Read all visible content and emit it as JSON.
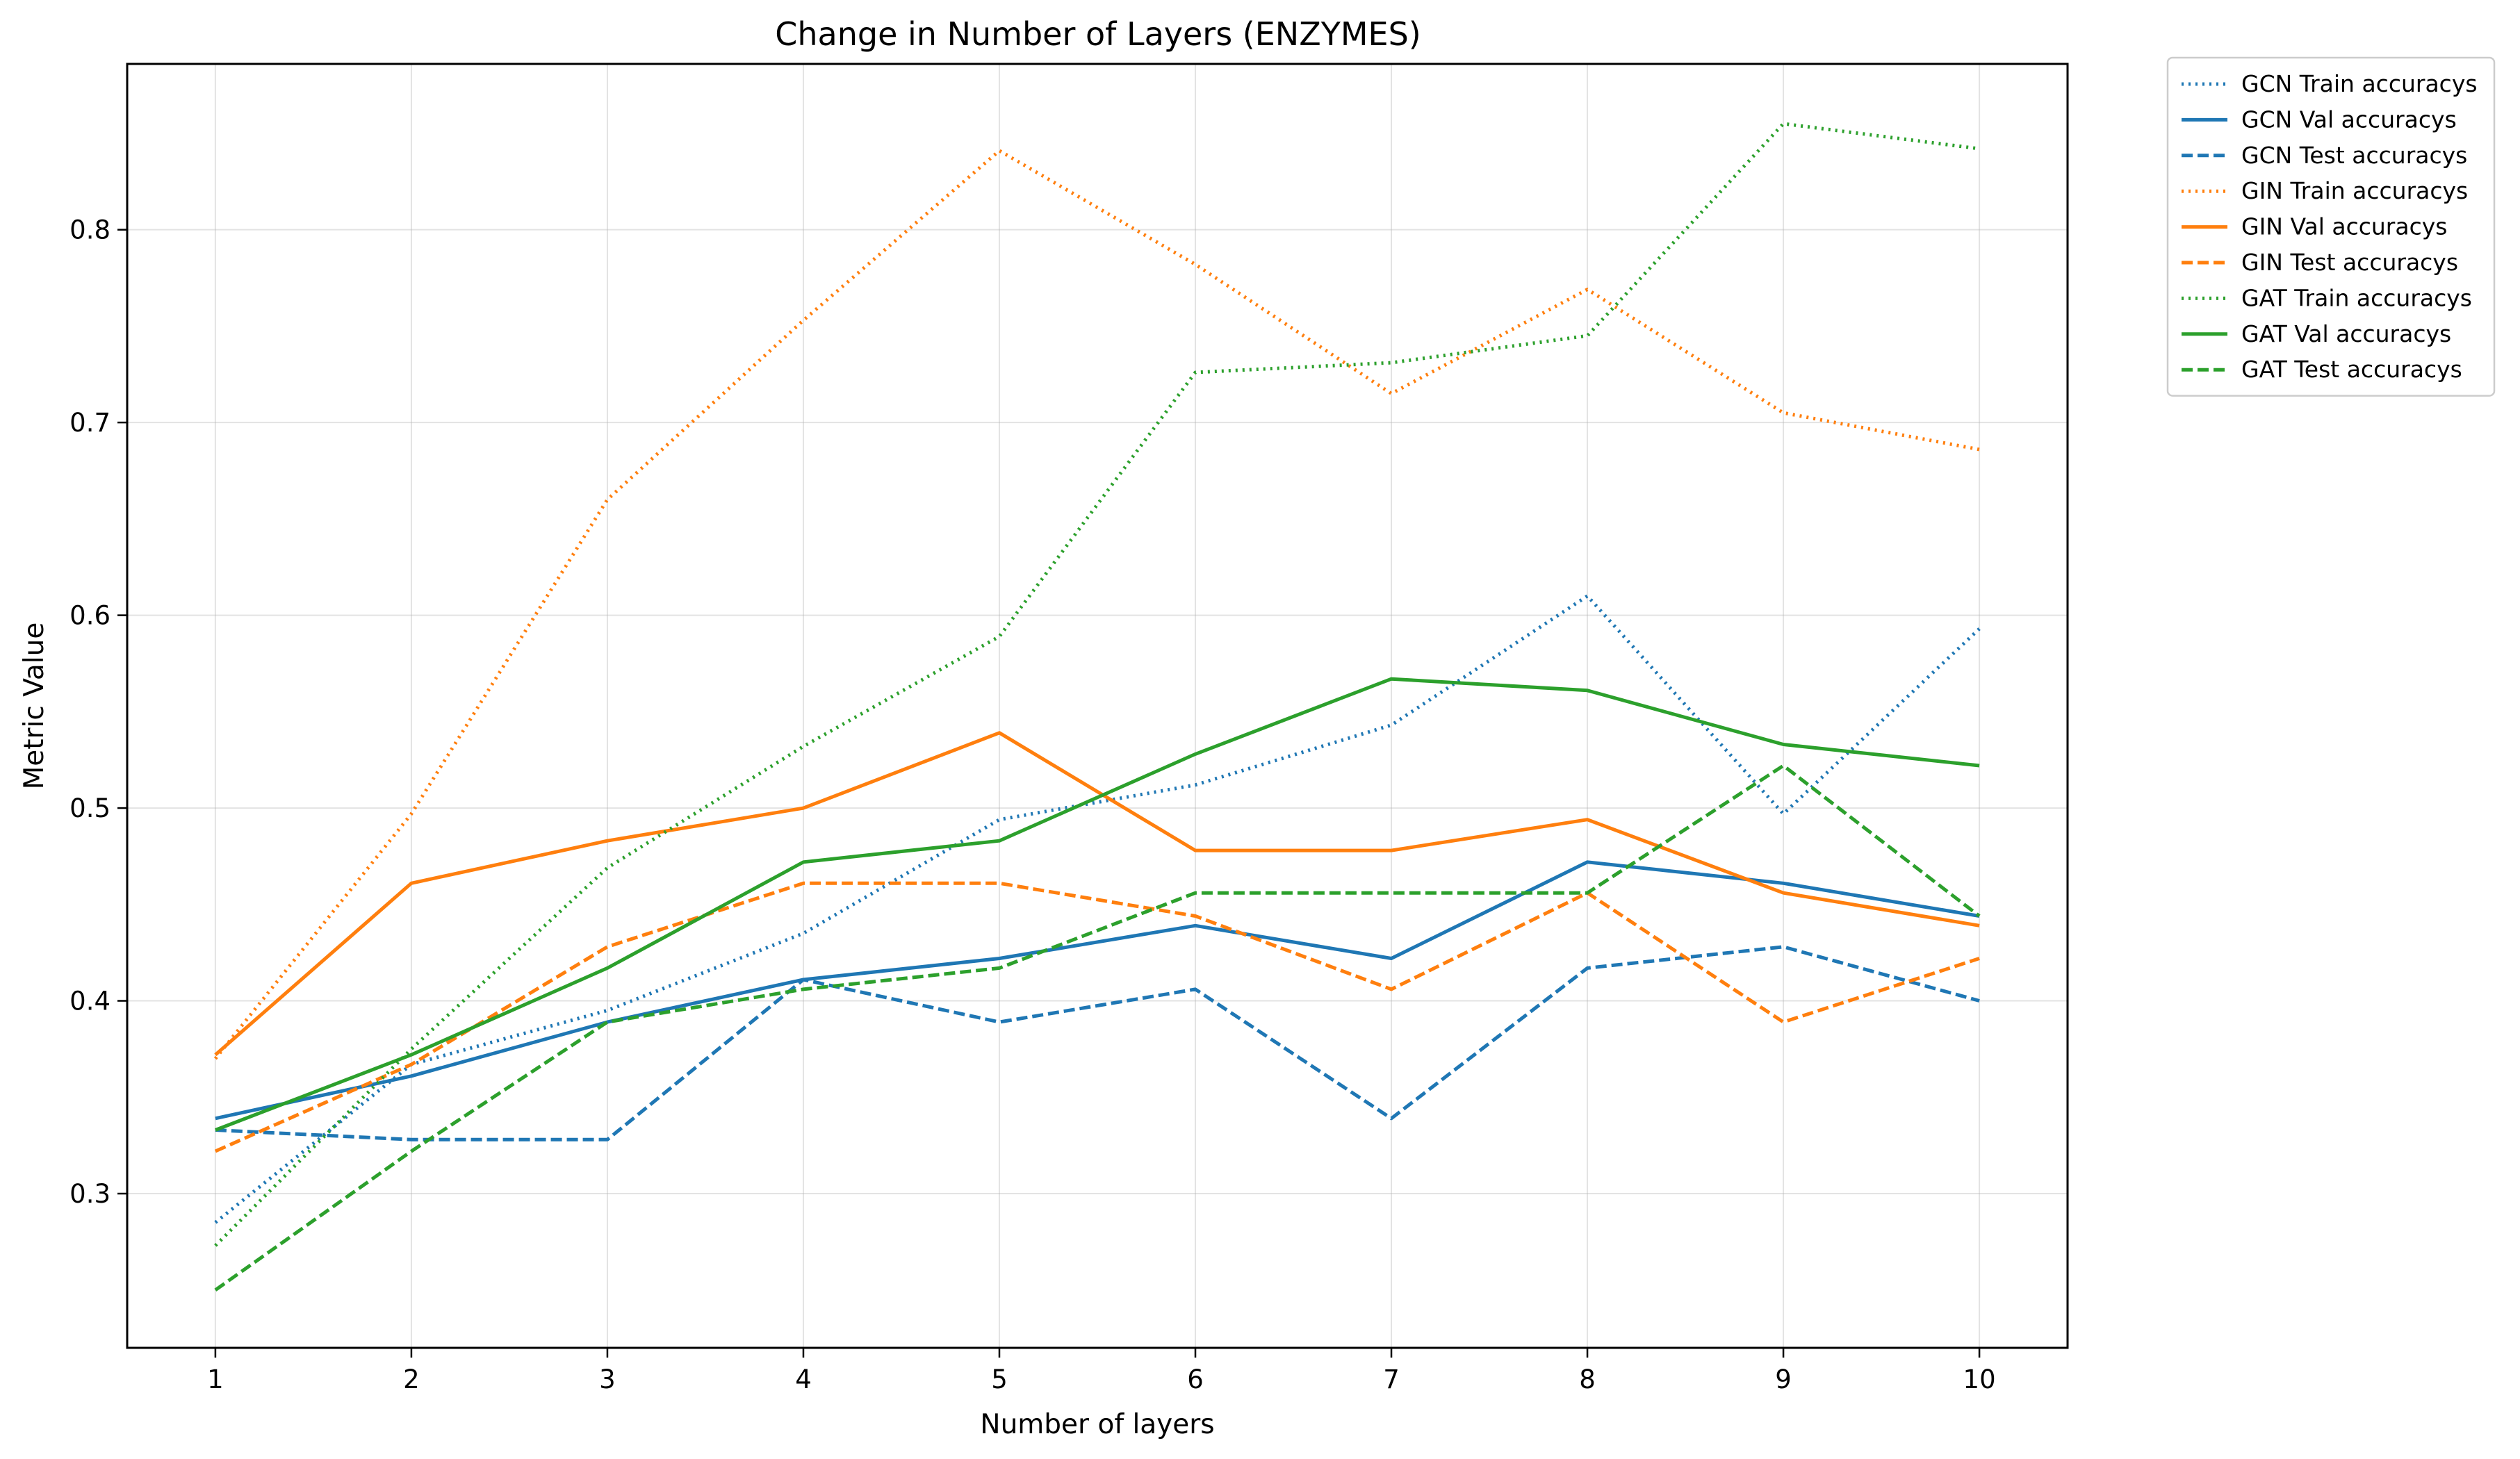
{
  "chart_data": {
    "type": "line",
    "title": "Change in Number of Layers (ENZYMES)",
    "xlabel": "Number of layers",
    "ylabel": "Metric Value",
    "x": [
      1,
      2,
      3,
      4,
      5,
      6,
      7,
      8,
      9,
      10
    ],
    "xlim": [
      0.55,
      10.45
    ],
    "ylim": [
      0.22,
      0.886
    ],
    "yticks": [
      0.3,
      0.4,
      0.5,
      0.6,
      0.7,
      0.8
    ],
    "grid": true,
    "legend_position": "outside-top-right",
    "series": [
      {
        "name": "GCN Train accuracys",
        "color": "#1f77b4",
        "style": "dotted",
        "values": [
          0.285,
          0.367,
          0.395,
          0.435,
          0.494,
          0.512,
          0.543,
          0.61,
          0.497,
          0.593
        ]
      },
      {
        "name": "GCN Val accuracys",
        "color": "#1f77b4",
        "style": "solid",
        "values": [
          0.339,
          0.361,
          0.389,
          0.411,
          0.422,
          0.439,
          0.422,
          0.472,
          0.461,
          0.444
        ]
      },
      {
        "name": "GCN Test accuracys",
        "color": "#1f77b4",
        "style": "dashed",
        "values": [
          0.333,
          0.328,
          0.328,
          0.411,
          0.389,
          0.406,
          0.339,
          0.417,
          0.428,
          0.4
        ]
      },
      {
        "name": "GIN Train accuracys",
        "color": "#ff7f0e",
        "style": "dotted",
        "values": [
          0.37,
          0.497,
          0.66,
          0.753,
          0.841,
          0.782,
          0.715,
          0.769,
          0.705,
          0.686
        ]
      },
      {
        "name": "GIN Val accuracys",
        "color": "#ff7f0e",
        "style": "solid",
        "values": [
          0.372,
          0.461,
          0.483,
          0.5,
          0.539,
          0.478,
          0.478,
          0.494,
          0.456,
          0.439
        ]
      },
      {
        "name": "GIN Test accuracys",
        "color": "#ff7f0e",
        "style": "dashed",
        "values": [
          0.322,
          0.367,
          0.428,
          0.461,
          0.461,
          0.444,
          0.406,
          0.456,
          0.389,
          0.422
        ]
      },
      {
        "name": "GAT Train accuracys",
        "color": "#2ca02c",
        "style": "dotted",
        "values": [
          0.273,
          0.375,
          0.469,
          0.532,
          0.589,
          0.726,
          0.731,
          0.745,
          0.855,
          0.842
        ]
      },
      {
        "name": "GAT Val accuracys",
        "color": "#2ca02c",
        "style": "solid",
        "values": [
          0.333,
          0.372,
          0.417,
          0.472,
          0.483,
          0.528,
          0.567,
          0.561,
          0.533,
          0.522
        ]
      },
      {
        "name": "GAT Test accuracys",
        "color": "#2ca02c",
        "style": "dashed",
        "values": [
          0.25,
          0.322,
          0.389,
          0.406,
          0.417,
          0.456,
          0.456,
          0.456,
          0.522,
          0.444
        ]
      }
    ]
  }
}
